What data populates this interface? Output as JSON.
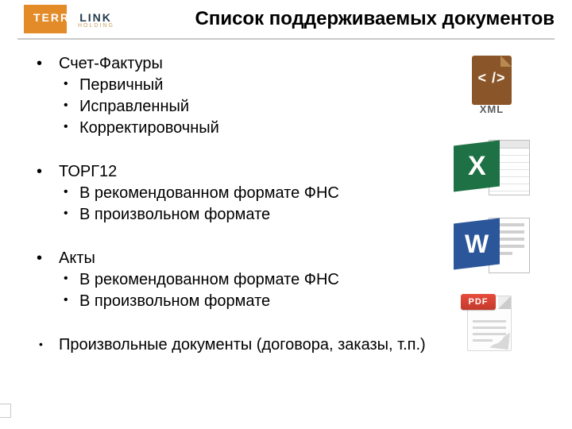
{
  "logo": {
    "half1": "TERRA",
    "half2": "LINK",
    "sub": "HOLDING",
    "block_color": "#e38b28",
    "text2_color": "#223a4a",
    "sub_color": "#c9a060"
  },
  "title": "Список поддерживаемых документов",
  "title_fontsize": 24,
  "rule_color": "#c9c9c9",
  "body_fontsize": 20,
  "items": [
    {
      "label": "Счет-Фактуры",
      "sub": [
        "Первичный",
        "Исправленный",
        "Корректировочный"
      ]
    },
    {
      "label": "ТОРГ12",
      "sub": [
        "В рекомендованном формате ФНС",
        "В произвольном формате"
      ]
    },
    {
      "label": "Акты",
      "sub": [
        "В рекомендованном формате ФНС",
        "В произвольном формате"
      ]
    },
    {
      "label": "Произвольные документы (договора, заказы, т.п.)",
      "sub": [],
      "small_bullet": true
    }
  ],
  "icons": {
    "xml": {
      "name": "xml-icon",
      "code": "< />",
      "label": "XML",
      "page_color": "#8a5528",
      "fold_color": "#b88951",
      "label_color": "#5a5a5a"
    },
    "excel": {
      "name": "excel-icon",
      "letter": "X",
      "badge_color": "#1e7145"
    },
    "word": {
      "name": "word-icon",
      "letter": "W",
      "badge_color": "#2b579a"
    },
    "pdf": {
      "name": "pdf-icon",
      "label": "PDF",
      "badge_gradient": [
        "#e74b3c",
        "#c33a2c"
      ],
      "page_color": "#fdfdfd"
    }
  }
}
